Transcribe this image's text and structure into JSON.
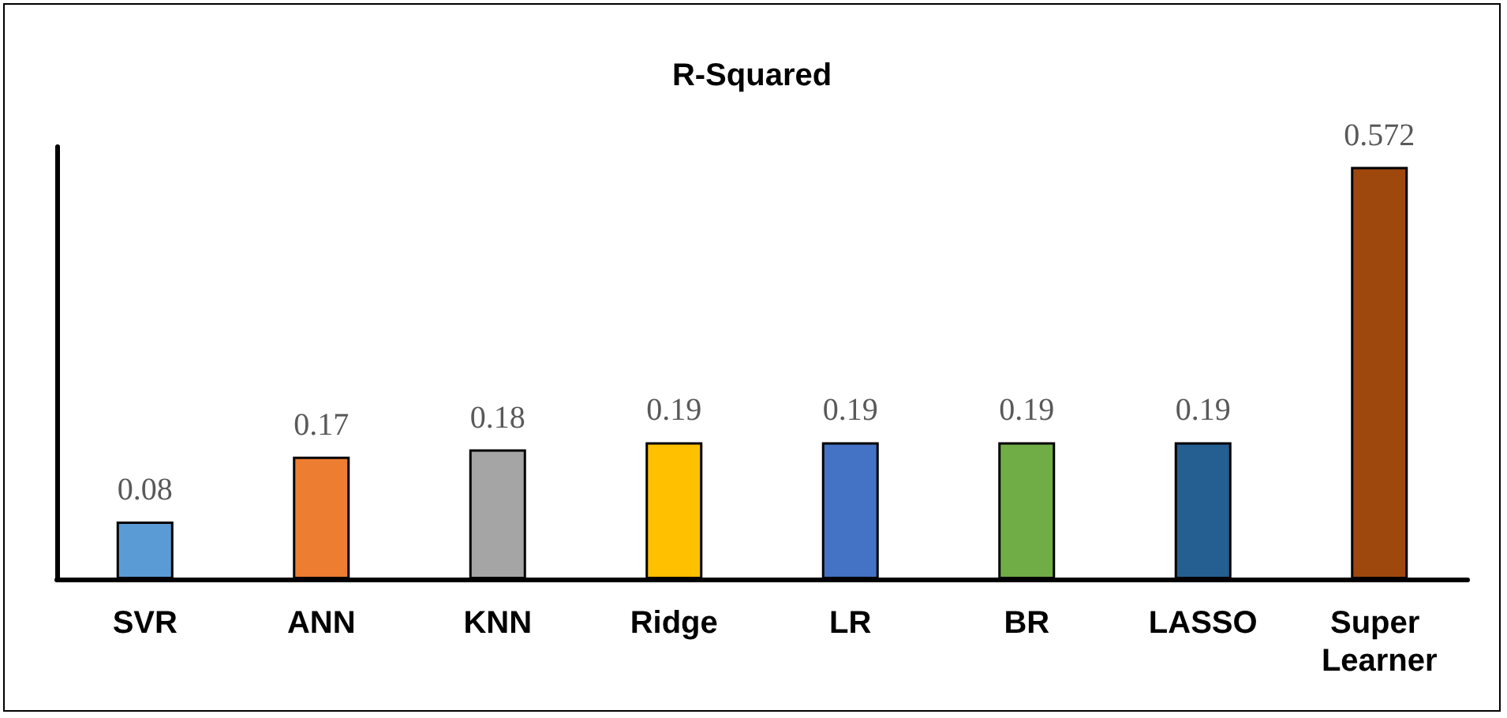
{
  "chart_data": {
    "type": "bar",
    "title": "R-Squared",
    "categories": [
      "SVR",
      "ANN",
      "KNN",
      "Ridge",
      "LR",
      "BR",
      "LASSO",
      "Super Learner"
    ],
    "values": [
      0.08,
      0.17,
      0.18,
      0.19,
      0.19,
      0.19,
      0.19,
      0.572
    ],
    "colors": [
      "#5b9bd5",
      "#ed7d31",
      "#a5a5a5",
      "#ffc000",
      "#4472c4",
      "#70ad47",
      "#255e91",
      "#9e480e"
    ],
    "data_labels": true,
    "grid": false,
    "tick_labels": "x"
  }
}
